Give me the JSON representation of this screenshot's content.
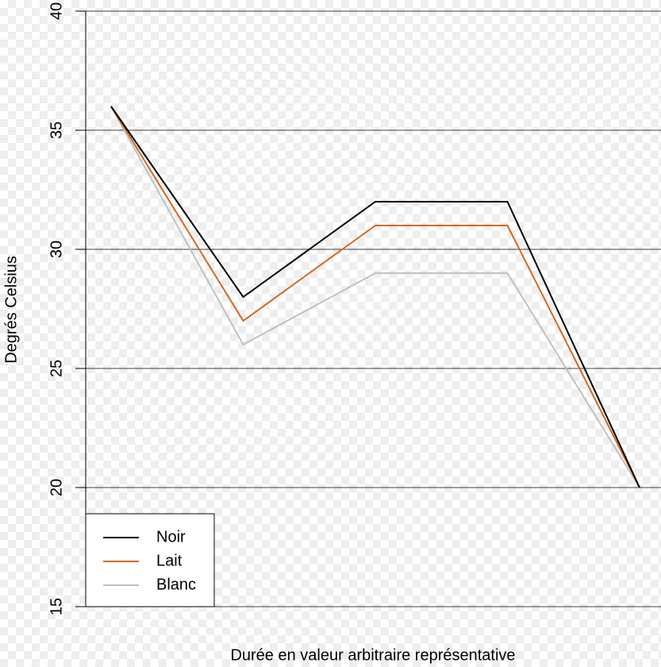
{
  "chart_data": {
    "type": "line",
    "xlabel": "Durée en valeur arbitraire représentative",
    "ylabel": "Degrés Celsius",
    "categories": [
      null,
      null,
      null,
      null,
      null
    ],
    "series": [
      {
        "name": "Noir",
        "color": "#000000",
        "values": [
          36,
          28,
          32,
          32,
          20
        ]
      },
      {
        "name": "Lait",
        "color": "#d2691e",
        "values": [
          36,
          27,
          31,
          31,
          20
        ]
      },
      {
        "name": "Blanc",
        "color": "#c0c0c0",
        "values": [
          36,
          26,
          29,
          29,
          20
        ]
      }
    ],
    "ylim": [
      15,
      40
    ],
    "yticks": [
      15,
      20,
      25,
      30,
      35,
      40
    ],
    "grid": true,
    "legend": "bottom-left"
  }
}
